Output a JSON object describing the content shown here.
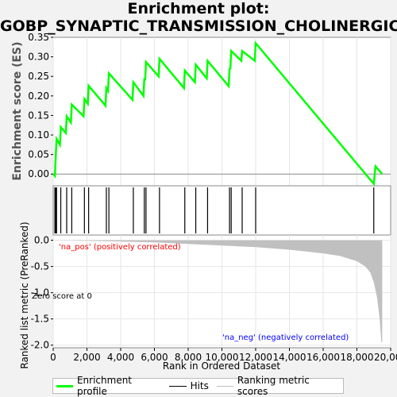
{
  "title_line1": "Enrichment plot:",
  "title_line2": "GOBP_SYNAPTIC_TRANSMISSION_CHOLINERGIC",
  "colors": {
    "es_line": "#00ff00",
    "hits": "#000000",
    "metric_fill": "#c0c0c0",
    "pos_text": "#ff0000",
    "neg_text": "#0000ff"
  },
  "chart_data": {
    "type": "line",
    "es_panel": {
      "ylabel": "Enrichment score (ES)",
      "ylim": [
        -0.03,
        0.35
      ],
      "yticks": [
        0.0,
        0.05,
        0.1,
        0.15,
        0.2,
        0.25,
        0.3,
        0.35
      ],
      "ytick_labels": [
        "0.00",
        "0.05",
        "0.10",
        "0.15",
        "0.20",
        "0.25",
        "0.30",
        "0.35"
      ],
      "es_points": [
        [
          0,
          0
        ],
        [
          100,
          -0.005
        ],
        [
          150,
          0.045
        ],
        [
          200,
          0.09
        ],
        [
          400,
          0.075
        ],
        [
          450,
          0.12
        ],
        [
          750,
          0.105
        ],
        [
          800,
          0.148
        ],
        [
          1050,
          0.132
        ],
        [
          1100,
          0.178
        ],
        [
          1800,
          0.148
        ],
        [
          1850,
          0.192
        ],
        [
          2050,
          0.18
        ],
        [
          2100,
          0.226
        ],
        [
          3100,
          0.175
        ],
        [
          3150,
          0.22
        ],
        [
          3250,
          0.213
        ],
        [
          3300,
          0.258
        ],
        [
          4700,
          0.19
        ],
        [
          4750,
          0.235
        ],
        [
          5350,
          0.2
        ],
        [
          5400,
          0.245
        ],
        [
          5450,
          0.24
        ],
        [
          5500,
          0.287
        ],
        [
          6250,
          0.25
        ],
        [
          6300,
          0.295
        ],
        [
          7750,
          0.22
        ],
        [
          7800,
          0.265
        ],
        [
          8400,
          0.235
        ],
        [
          8450,
          0.28
        ],
        [
          9100,
          0.245
        ],
        [
          9150,
          0.29
        ],
        [
          10400,
          0.225
        ],
        [
          10450,
          0.268
        ],
        [
          10500,
          0.27
        ],
        [
          10550,
          0.315
        ],
        [
          11150,
          0.29
        ],
        [
          11200,
          0.315
        ],
        [
          11950,
          0.29
        ],
        [
          12000,
          0.335
        ],
        [
          19000,
          -0.025
        ],
        [
          19100,
          0.02
        ],
        [
          19500,
          0.0
        ]
      ]
    },
    "hits_panel": {
      "hit_positions": [
        100,
        150,
        200,
        450,
        800,
        1100,
        1850,
        2100,
        3150,
        3300,
        4750,
        5400,
        5500,
        6300,
        7800,
        8450,
        9150,
        10450,
        10550,
        11200,
        12000,
        19000
      ]
    },
    "metric_panel": {
      "ylabel": "Ranked list metric (PreRanked)",
      "ylim": [
        -2.05,
        0.1
      ],
      "yticks": [
        0.0,
        -0.5,
        -1.0,
        -1.5,
        -2.0
      ],
      "ytick_labels": [
        "0.0",
        "-0.5",
        "-1.0",
        "-1.5",
        "-2.0"
      ],
      "metric_curve": [
        [
          0,
          0.0
        ],
        [
          2000,
          -0.01
        ],
        [
          6000,
          -0.04
        ],
        [
          8000,
          -0.07
        ],
        [
          10000,
          -0.1
        ],
        [
          12000,
          -0.13
        ],
        [
          14000,
          -0.18
        ],
        [
          16000,
          -0.25
        ],
        [
          17000,
          -0.3
        ],
        [
          18000,
          -0.4
        ],
        [
          18500,
          -0.5
        ],
        [
          18800,
          -0.62
        ],
        [
          19000,
          -0.8
        ],
        [
          19200,
          -1.1
        ],
        [
          19350,
          -1.5
        ],
        [
          19450,
          -1.95
        ],
        [
          19500,
          -1.95
        ],
        [
          19500,
          0.0
        ]
      ],
      "pos_label": "'na_pos' (positively correlated)",
      "neg_label": "'na_neg' (negatively correlated)",
      "zero_label": "Zero score at 0"
    },
    "xaxis": {
      "xlabel": "Rank in Ordered Dataset",
      "xlim": [
        0,
        20000
      ],
      "xticks": [
        0,
        2000,
        4000,
        6000,
        8000,
        10000,
        12000,
        14000,
        16000,
        18000,
        20000
      ],
      "xtick_labels": [
        "0",
        "2,000",
        "4,000",
        "6,000",
        "8,000",
        "10,000",
        "12,000",
        "14,000",
        "16,000",
        "18,000",
        "20,000"
      ]
    },
    "legend": [
      {
        "label": "Enrichment profile",
        "color": "#00ff00"
      },
      {
        "label": "Hits",
        "color": "#000000"
      },
      {
        "label": "Ranking metric scores",
        "color": "#c0c0c0"
      }
    ],
    "legend_placement": "bottom"
  }
}
